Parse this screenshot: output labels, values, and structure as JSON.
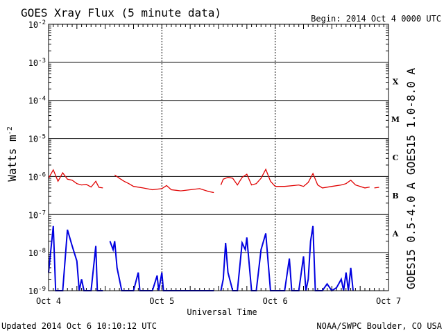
{
  "header": {
    "title": "GOES Xray Flux (5 minute data)",
    "begin": "Begin:  2014 Oct 4 0000 UTC"
  },
  "footer": {
    "updated": "Updated 2014 Oct  6 10:10:12 UTC",
    "credit": "NOAA/SWPC Boulder, CO USA"
  },
  "chart_data": {
    "type": "line",
    "title": "GOES Xray Flux (5 minute data)",
    "xlabel": "Universal Time",
    "ylabel": "Watts m",
    "ylabel_sup": "-2",
    "y_scale": "log",
    "ylim": [
      1e-09,
      0.01
    ],
    "xlim": [
      "2014-10-04 00:00",
      "2014-10-07 00:00"
    ],
    "x_ticks": [
      "Oct 4",
      "Oct 5",
      "Oct 6",
      "Oct 7"
    ],
    "y_ticks": [
      {
        "base": "10",
        "exp": "-2",
        "value": 0.01
      },
      {
        "base": "10",
        "exp": "-3",
        "value": 0.001
      },
      {
        "base": "10",
        "exp": "-4",
        "value": 0.0001
      },
      {
        "base": "10",
        "exp": "-5",
        "value": 1e-05
      },
      {
        "base": "10",
        "exp": "-6",
        "value": 1e-06
      },
      {
        "base": "10",
        "exp": "-7",
        "value": 1e-07
      },
      {
        "base": "10",
        "exp": "-8",
        "value": 1e-08
      },
      {
        "base": "10",
        "exp": "-9",
        "value": 1e-09
      }
    ],
    "flare_classes": [
      {
        "label": "X",
        "value": 0.000316
      },
      {
        "label": "M",
        "value": 3.16e-05
      },
      {
        "label": "C",
        "value": 3.16e-06
      },
      {
        "label": "B",
        "value": 3.16e-07
      },
      {
        "label": "A",
        "value": 3.16e-08
      }
    ],
    "grid": true,
    "series": [
      {
        "name": "GOES15 1.0-8.0 A",
        "color": "#e00000",
        "segments": [
          [
            [
              "2014-10-04 00:00",
              9e-07
            ],
            [
              "2014-10-04 01:00",
              1.5e-06
            ],
            [
              "2014-10-04 02:00",
              7.5e-07
            ],
            [
              "2014-10-04 03:00",
              1.25e-06
            ],
            [
              "2014-10-04 04:00",
              8.5e-07
            ],
            [
              "2014-10-04 05:00",
              8e-07
            ],
            [
              "2014-10-04 06:00",
              6.5e-07
            ],
            [
              "2014-10-04 07:00",
              6e-07
            ],
            [
              "2014-10-04 08:00",
              6.2e-07
            ],
            [
              "2014-10-04 09:00",
              5.3e-07
            ],
            [
              "2014-10-04 10:00",
              7.5e-07
            ],
            [
              "2014-10-04 10:40",
              5.2e-07
            ],
            [
              "2014-10-04 11:30",
              5e-07
            ]
          ],
          [
            [
              "2014-10-04 14:00",
              1.1e-06
            ],
            [
              "2014-10-04 15:00",
              9e-07
            ],
            [
              "2014-10-04 16:00",
              7.5e-07
            ],
            [
              "2014-10-04 17:00",
              6.5e-07
            ],
            [
              "2014-10-04 18:00",
              5.5e-07
            ],
            [
              "2014-10-04 20:00",
              5e-07
            ],
            [
              "2014-10-04 22:00",
              4.5e-07
            ],
            [
              "2014-10-05 00:00",
              4.8e-07
            ],
            [
              "2014-10-05 01:00",
              5.8e-07
            ],
            [
              "2014-10-05 02:00",
              4.5e-07
            ],
            [
              "2014-10-05 04:00",
              4.2e-07
            ],
            [
              "2014-10-05 06:00",
              4.5e-07
            ],
            [
              "2014-10-05 08:00",
              4.8e-07
            ],
            [
              "2014-10-05 10:00",
              4e-07
            ],
            [
              "2014-10-05 11:00",
              3.8e-07
            ]
          ],
          [
            [
              "2014-10-05 12:30",
              6e-07
            ],
            [
              "2014-10-05 13:00",
              8.5e-07
            ],
            [
              "2014-10-05 14:00",
              9.5e-07
            ],
            [
              "2014-10-05 15:00",
              9e-07
            ],
            [
              "2014-10-05 16:00",
              6e-07
            ],
            [
              "2014-10-05 17:00",
              9.5e-07
            ],
            [
              "2014-10-05 18:00",
              1.15e-06
            ],
            [
              "2014-10-05 19:00",
              6e-07
            ],
            [
              "2014-10-05 20:00",
              6.5e-07
            ],
            [
              "2014-10-05 21:00",
              9e-07
            ],
            [
              "2014-10-05 22:00",
              1.55e-06
            ],
            [
              "2014-10-05 23:00",
              7.5e-07
            ],
            [
              "2014-10-06 00:00",
              5.5e-07
            ],
            [
              "2014-10-06 02:00",
              5.5e-07
            ],
            [
              "2014-10-06 04:00",
              5.8e-07
            ],
            [
              "2014-10-06 05:00",
              6e-07
            ],
            [
              "2014-10-06 06:00",
              5.5e-07
            ],
            [
              "2014-10-06 07:00",
              7e-07
            ],
            [
              "2014-10-06 08:00",
              1.2e-06
            ],
            [
              "2014-10-06 09:00",
              6e-07
            ],
            [
              "2014-10-06 10:00",
              5e-07
            ],
            [
              "2014-10-06 12:00",
              5.5e-07
            ],
            [
              "2014-10-06 14:00",
              6e-07
            ],
            [
              "2014-10-06 15:00",
              6.5e-07
            ],
            [
              "2014-10-06 16:00",
              8e-07
            ],
            [
              "2014-10-06 17:00",
              6e-07
            ],
            [
              "2014-10-06 18:00",
              5.5e-07
            ],
            [
              "2014-10-06 19:00",
              5e-07
            ],
            [
              "2014-10-06 20:00",
              5.3e-07
            ]
          ],
          [
            [
              "2014-10-06 21:00",
              5e-07
            ],
            [
              "2014-10-06 22:00",
              5.2e-07
            ]
          ]
        ]
      },
      {
        "name": "GOES15 0.5-4.0 A",
        "color": "#0000e0",
        "segments": [
          [
            [
              "2014-10-04 00:00",
              3e-09
            ],
            [
              "2014-10-04 01:00",
              5e-08
            ],
            [
              "2014-10-04 01:30",
              1e-09
            ],
            [
              "2014-10-04 02:00",
              1e-09
            ],
            [
              "2014-10-04 03:00",
              1e-09
            ],
            [
              "2014-10-04 04:00",
              4e-08
            ],
            [
              "2014-10-04 05:00",
              1.5e-08
            ],
            [
              "2014-10-04 06:00",
              6e-09
            ],
            [
              "2014-10-04 06:30",
              1e-09
            ],
            [
              "2014-10-04 07:00",
              2e-09
            ],
            [
              "2014-10-04 07:30",
              1e-09
            ],
            [
              "2014-10-04 09:00",
              1e-09
            ],
            [
              "2014-10-04 10:00",
              1.5e-08
            ],
            [
              "2014-10-04 10:20",
              1e-09
            ],
            [
              "2014-10-04 11:30",
              1e-09
            ]
          ],
          [
            [
              "2014-10-04 13:00",
              2e-08
            ],
            [
              "2014-10-04 13:40",
              1.2e-08
            ],
            [
              "2014-10-04 14:00",
              2e-08
            ],
            [
              "2014-10-04 14:30",
              4e-09
            ],
            [
              "2014-10-04 15:00",
              2e-09
            ],
            [
              "2014-10-04 15:30",
              1e-09
            ],
            [
              "2014-10-04 18:00",
              1e-09
            ],
            [
              "2014-10-04 19:00",
              3e-09
            ],
            [
              "2014-10-04 19:20",
              1e-09
            ],
            [
              "2014-10-04 22:00",
              1e-09
            ],
            [
              "2014-10-04 23:00",
              2.5e-09
            ],
            [
              "2014-10-04 23:20",
              1e-09
            ],
            [
              "2014-10-05 00:00",
              3e-09
            ],
            [
              "2014-10-05 00:20",
              1e-09
            ],
            [
              "2014-10-05 11:00",
              1e-09
            ]
          ],
          [
            [
              "2014-10-05 12:30",
              1e-09
            ],
            [
              "2014-10-05 13:00",
              2e-09
            ],
            [
              "2014-10-05 13:30",
              1.8e-08
            ],
            [
              "2014-10-05 14:00",
              3e-09
            ],
            [
              "2014-10-05 15:00",
              1e-09
            ],
            [
              "2014-10-05 16:00",
              1e-09
            ],
            [
              "2014-10-05 17:00",
              1.8e-08
            ],
            [
              "2014-10-05 17:40",
              1.2e-08
            ],
            [
              "2014-10-05 18:00",
              2.5e-08
            ],
            [
              "2014-10-05 19:00",
              1e-09
            ],
            [
              "2014-10-05 20:00",
              1e-09
            ],
            [
              "2014-10-05 21:00",
              1.2e-08
            ],
            [
              "2014-10-05 22:00",
              3.2e-08
            ],
            [
              "2014-10-05 23:00",
              1e-09
            ],
            [
              "2014-10-06 02:00",
              1e-09
            ],
            [
              "2014-10-06 03:00",
              7e-09
            ],
            [
              "2014-10-06 03:30",
              1e-09
            ],
            [
              "2014-10-06 05:00",
              1e-09
            ],
            [
              "2014-10-06 06:00",
              8e-09
            ],
            [
              "2014-10-06 06:30",
              1e-09
            ],
            [
              "2014-10-06 07:00",
              2e-09
            ],
            [
              "2014-10-06 07:30",
              2e-08
            ],
            [
              "2014-10-06 08:00",
              5e-08
            ],
            [
              "2014-10-06 08:30",
              1e-09
            ],
            [
              "2014-10-06 10:00",
              1e-09
            ],
            [
              "2014-10-06 11:00",
              1.5e-09
            ],
            [
              "2014-10-06 12:00",
              1e-09
            ],
            [
              "2014-10-06 13:00",
              1.2e-09
            ],
            [
              "2014-10-06 14:00",
              2e-09
            ],
            [
              "2014-10-06 14:30",
              1e-09
            ],
            [
              "2014-10-06 15:00",
              3e-09
            ],
            [
              "2014-10-06 15:30",
              1e-09
            ],
            [
              "2014-10-06 16:00",
              4e-09
            ],
            [
              "2014-10-06 16:30",
              1e-09
            ]
          ]
        ]
      }
    ]
  }
}
